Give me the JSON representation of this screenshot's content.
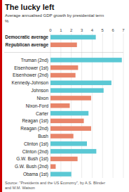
{
  "chart_data": {
    "type": "bar",
    "orientation": "horizontal",
    "title": "The lucky left",
    "subtitle": "Average annualised GDP growth by presidential term\n%",
    "source": "Source: \"Presidents and the US Economy\", by A.S. Blinder\nand M.M. Watson",
    "categories": [
      "Democratic average",
      "Republican average",
      null,
      "Truman (2nd)",
      "Eisenhower (1st)",
      "Eisenhower (2nd)",
      "Kennedy-Johnson",
      "Johnson",
      "Nixon",
      "Nixon-Ford",
      "Carter",
      "Reagan (1st)",
      "Reagan (2nd)",
      "Bush",
      "Clinton (1st)",
      "Clinton (2nd)",
      "G.W. Bush (1st)",
      "G.W. Bush (2nd)",
      "Obama (1st)"
    ],
    "values": [
      4.35,
      2.54,
      null,
      6.85,
      2.65,
      2.4,
      5.85,
      5.1,
      3.9,
      1.85,
      3.65,
      3.2,
      3.9,
      2.2,
      3.5,
      4.4,
      2.6,
      0.5,
      2.0
    ],
    "colors": [
      "#5bc8d4",
      "#e8856a",
      null,
      "#5bc8d4",
      "#e8856a",
      "#e8856a",
      "#5bc8d4",
      "#5bc8d4",
      "#e8856a",
      "#e8856a",
      "#5bc8d4",
      "#e8856a",
      "#e8856a",
      "#e8856a",
      "#5bc8d4",
      "#5bc8d4",
      "#e8856a",
      "#e8856a",
      "#5bc8d4"
    ],
    "xlim": [
      0,
      7
    ],
    "xticks": [
      0,
      1,
      2,
      3,
      4,
      5,
      6,
      7
    ],
    "grid": true
  }
}
